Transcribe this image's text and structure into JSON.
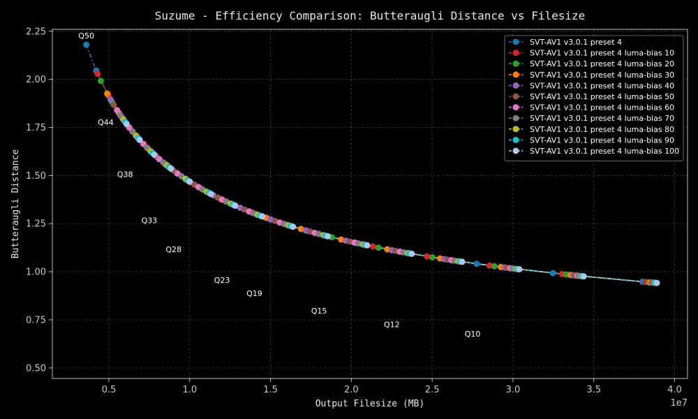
{
  "chart_data": {
    "type": "line",
    "title": "Suzume - Efficiency Comparison: Butteraugli Distance vs Filesize",
    "xlabel": "Output Filesize (MB)",
    "ylabel": "Butteraugli Distance",
    "x_offset_label": "1e7",
    "xlim": [
      1500000,
      40800000
    ],
    "ylim": [
      0.445,
      2.26
    ],
    "x_ticks": [
      5000000,
      10000000,
      15000000,
      20000000,
      25000000,
      30000000,
      35000000,
      40000000
    ],
    "x_tick_labels": [
      "0.5",
      "1.0",
      "1.5",
      "2.0",
      "2.5",
      "3.0",
      "3.5",
      "4.0"
    ],
    "y_ticks": [
      0.5,
      0.75,
      1.0,
      1.25,
      1.5,
      1.75,
      2.0,
      2.25
    ],
    "y_tick_labels": [
      "0.50",
      "0.75",
      "1.00",
      "1.25",
      "1.50",
      "1.75",
      "2.00",
      "2.25"
    ],
    "grid": true,
    "legend_position": "top-right",
    "curve_constant": 8000000,
    "curve_exponent": -0.5,
    "curve_floor": 0.4,
    "series": [
      {
        "name": "SVT-AV1 v3.0.1 preset 4",
        "color": "#1f77b4",
        "x_start": 3600000,
        "x_end": 38000000
      },
      {
        "name": "SVT-AV1 v3.0.1 preset 4 luma-bias 10",
        "color": "#d62728",
        "x_start": 4300000,
        "x_end": 38200000
      },
      {
        "name": "SVT-AV1 v3.0.1 preset 4 luma-bias 20",
        "color": "#2ca02c",
        "x_start": 4500000,
        "x_end": 38400000
      },
      {
        "name": "SVT-AV1 v3.0.1 preset 4 luma-bias 30",
        "color": "#ff7f0e",
        "x_start": 4900000,
        "x_end": 38500000
      },
      {
        "name": "SVT-AV1 v3.0.1 preset 4 luma-bias 40",
        "color": "#9467bd",
        "x_start": 5100000,
        "x_end": 38600000
      },
      {
        "name": "SVT-AV1 v3.0.1 preset 4 luma-bias 50",
        "color": "#8c564b",
        "x_start": 5300000,
        "x_end": 38600000
      },
      {
        "name": "SVT-AV1 v3.0.1 preset 4 luma-bias 60",
        "color": "#e377c2",
        "x_start": 5500000,
        "x_end": 38700000
      },
      {
        "name": "SVT-AV1 v3.0.1 preset 4 luma-bias 70",
        "color": "#7f7f7f",
        "x_start": 5700000,
        "x_end": 38700000
      },
      {
        "name": "SVT-AV1 v3.0.1 preset 4 luma-bias 80",
        "color": "#bcbd22",
        "x_start": 5900000,
        "x_end": 38800000
      },
      {
        "name": "SVT-AV1 v3.0.1 preset 4 luma-bias 90",
        "color": "#17becf",
        "x_start": 6000000,
        "x_end": 38800000
      },
      {
        "name": "SVT-AV1 v3.0.1 preset 4 luma-bias 100",
        "color": "#aec7e8",
        "x_start": 6100000,
        "x_end": 38900000
      }
    ],
    "annotations": [
      {
        "text": "Q50",
        "x": 3600000,
        "y": 2.18
      },
      {
        "text": "Q44",
        "x": 4800000,
        "y": 1.73
      },
      {
        "text": "Q38",
        "x": 6000000,
        "y": 1.46
      },
      {
        "text": "Q33",
        "x": 7500000,
        "y": 1.22
      },
      {
        "text": "Q28",
        "x": 9000000,
        "y": 1.07
      },
      {
        "text": "Q23",
        "x": 12000000,
        "y": 0.91
      },
      {
        "text": "Q19",
        "x": 14000000,
        "y": 0.84
      },
      {
        "text": "Q15",
        "x": 18000000,
        "y": 0.75
      },
      {
        "text": "Q12",
        "x": 22500000,
        "y": 0.68
      },
      {
        "text": "Q10",
        "x": 27500000,
        "y": 0.63
      }
    ]
  }
}
